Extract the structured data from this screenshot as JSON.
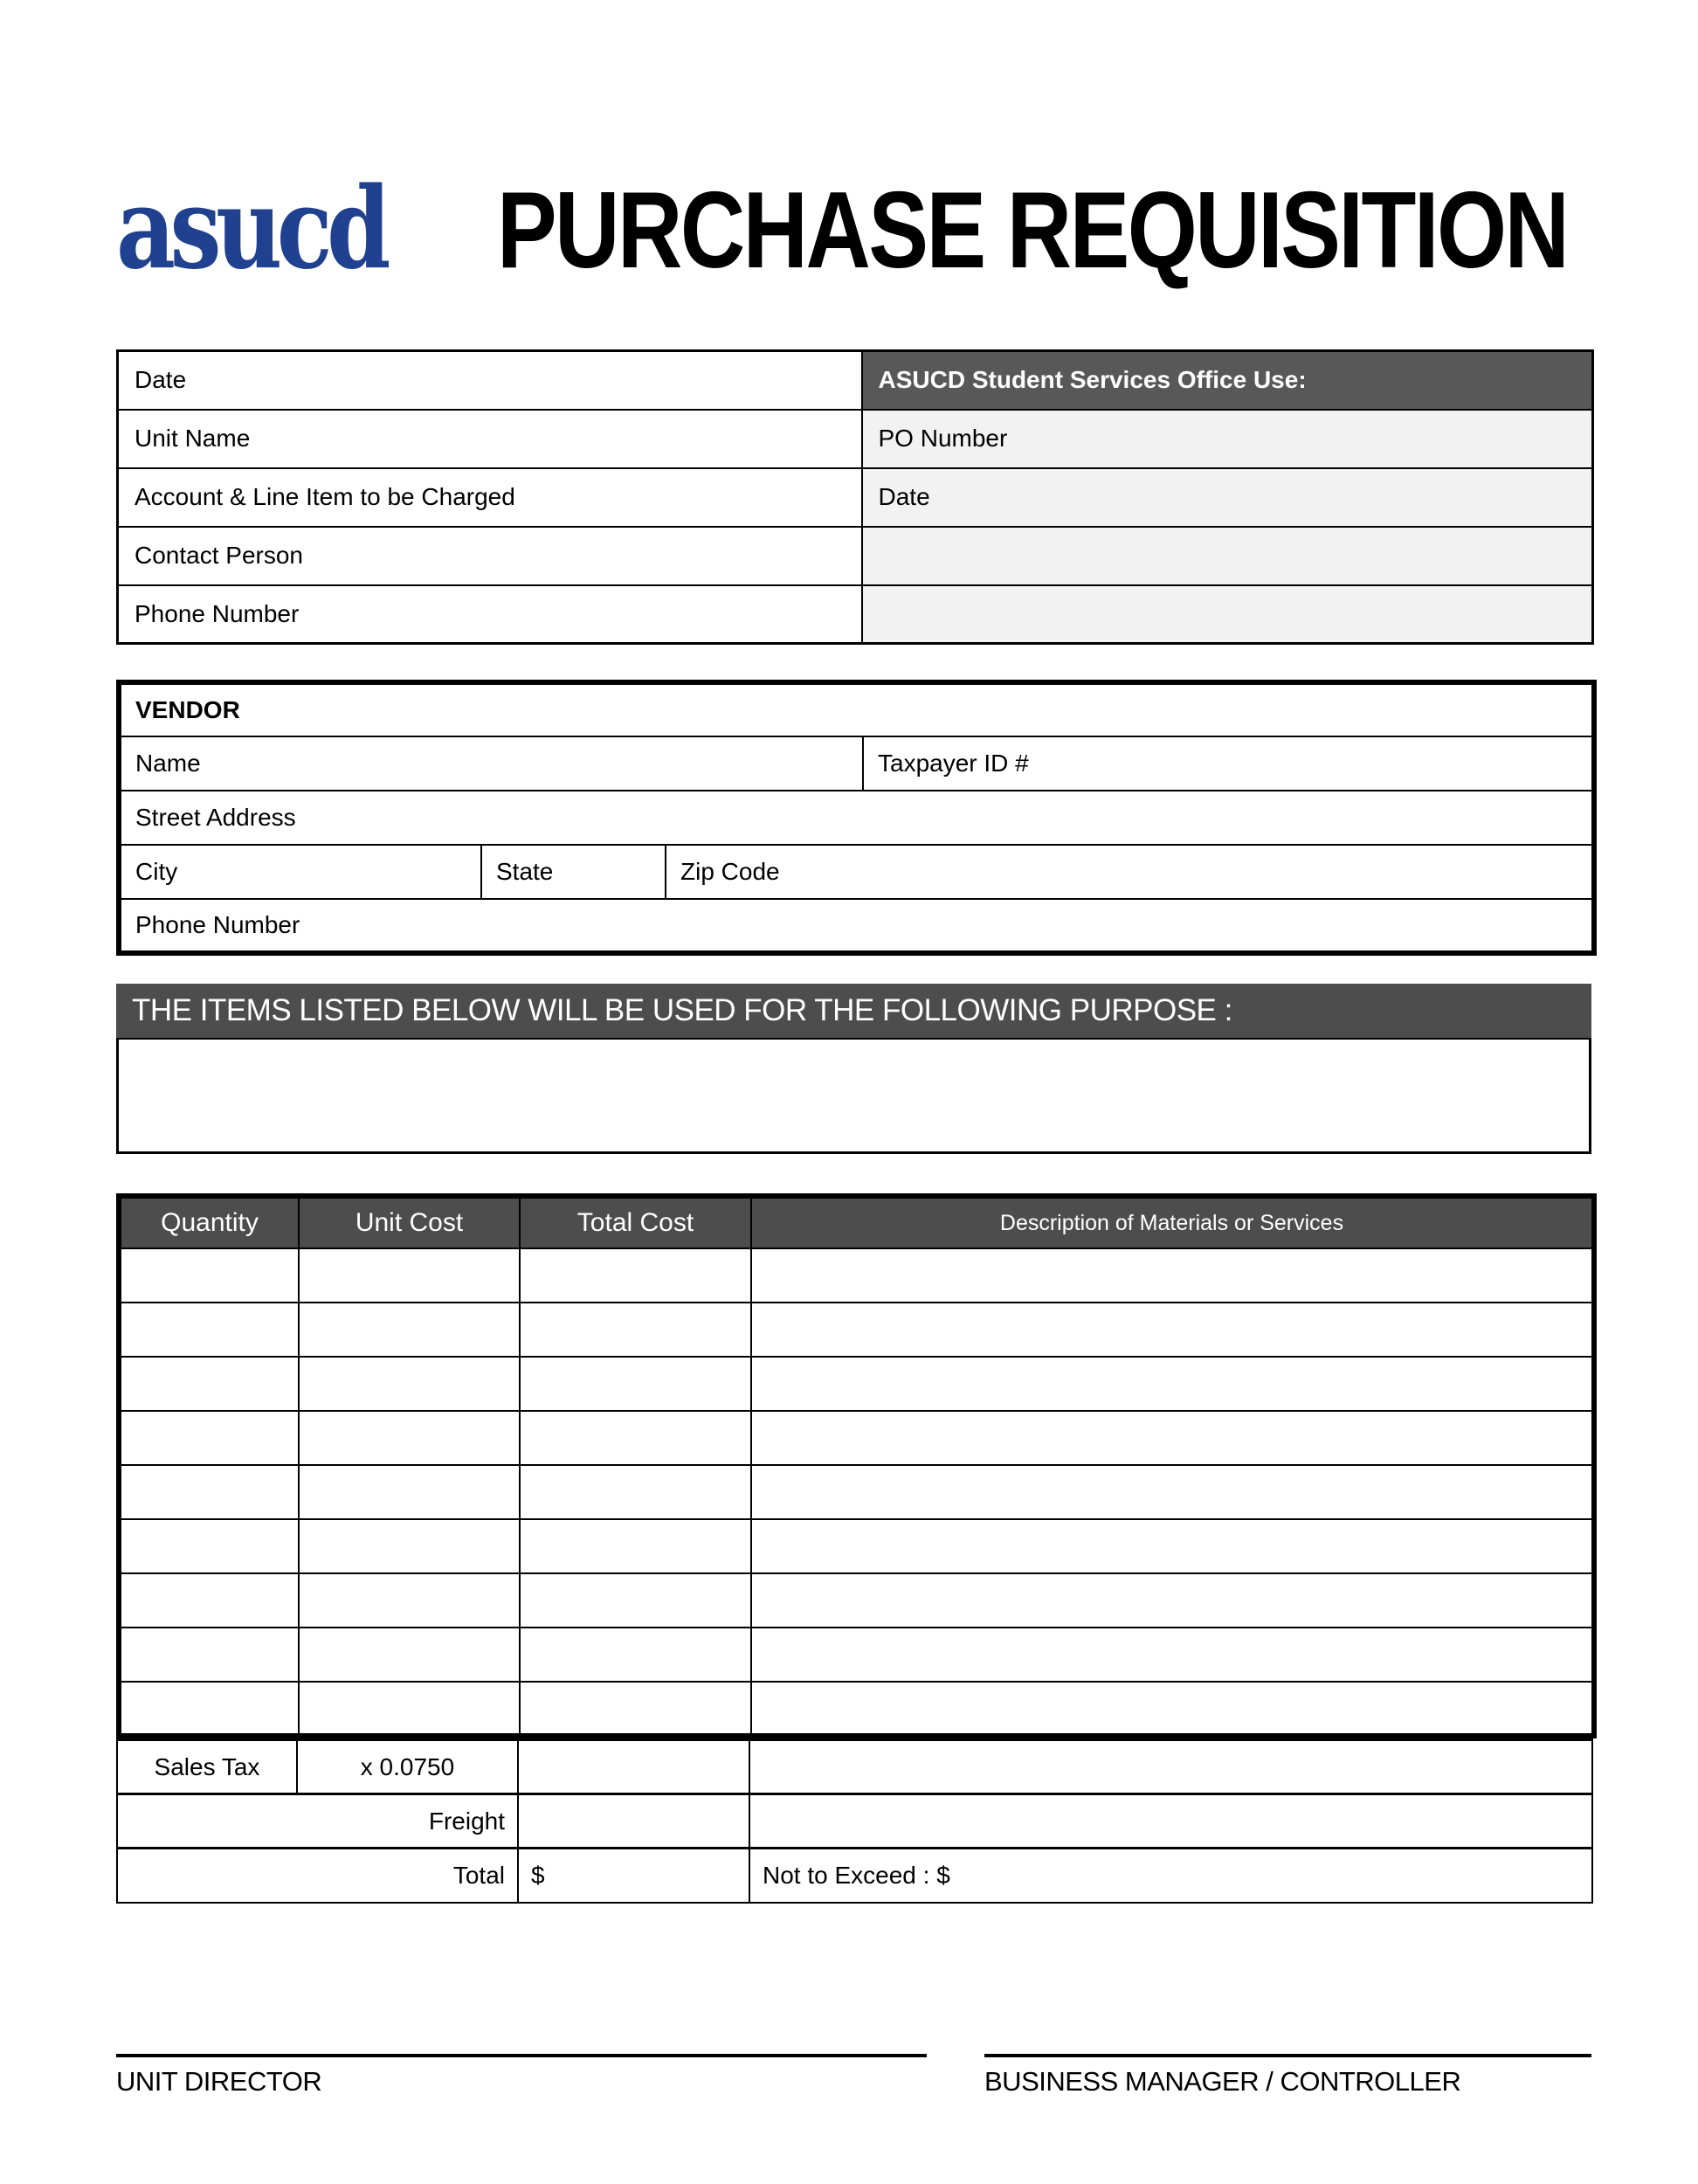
{
  "page": {
    "logo_text": "asucd",
    "title": "PURCHASE REQUISITION"
  },
  "colors": {
    "logo_blue": "#1f418f",
    "header_dark_gray": "#4d4d4d",
    "office_bar_gray": "#585858",
    "office_cell_gray": "#f2f2f2"
  },
  "info_table": {
    "left_rows": [
      "Date",
      "Unit Name",
      "Account & Line Item to be Charged",
      "Contact Person",
      "Phone Number"
    ],
    "office_header": "ASUCD Student Services Office Use:",
    "office_rows": [
      "PO Number",
      "Date",
      "",
      ""
    ]
  },
  "vendor": {
    "header": "VENDOR",
    "name_label": "Name",
    "taxpayer_label": "Taxpayer ID #",
    "street_label": "Street Address",
    "city_label": "City",
    "state_label": "State",
    "zip_label": "Zip Code",
    "phone_label": "Phone Number"
  },
  "purpose": {
    "header": "THE ITEMS LISTED BELOW WILL BE USED FOR THE FOLLOWING PURPOSE :"
  },
  "items": {
    "columns": [
      "Quantity",
      "Unit Cost",
      "Total Cost",
      "Description of Materials or Services"
    ],
    "empty_row_count": 9,
    "sales_tax_label": "Sales Tax",
    "sales_tax_rate": "x 0.0750",
    "freight_label": "Freight",
    "total_label": "Total",
    "total_currency": "$",
    "not_to_exceed_label": "Not to Exceed : $"
  },
  "signatures": {
    "left": "UNIT DIRECTOR",
    "right": "BUSINESS MANAGER / CONTROLLER"
  }
}
